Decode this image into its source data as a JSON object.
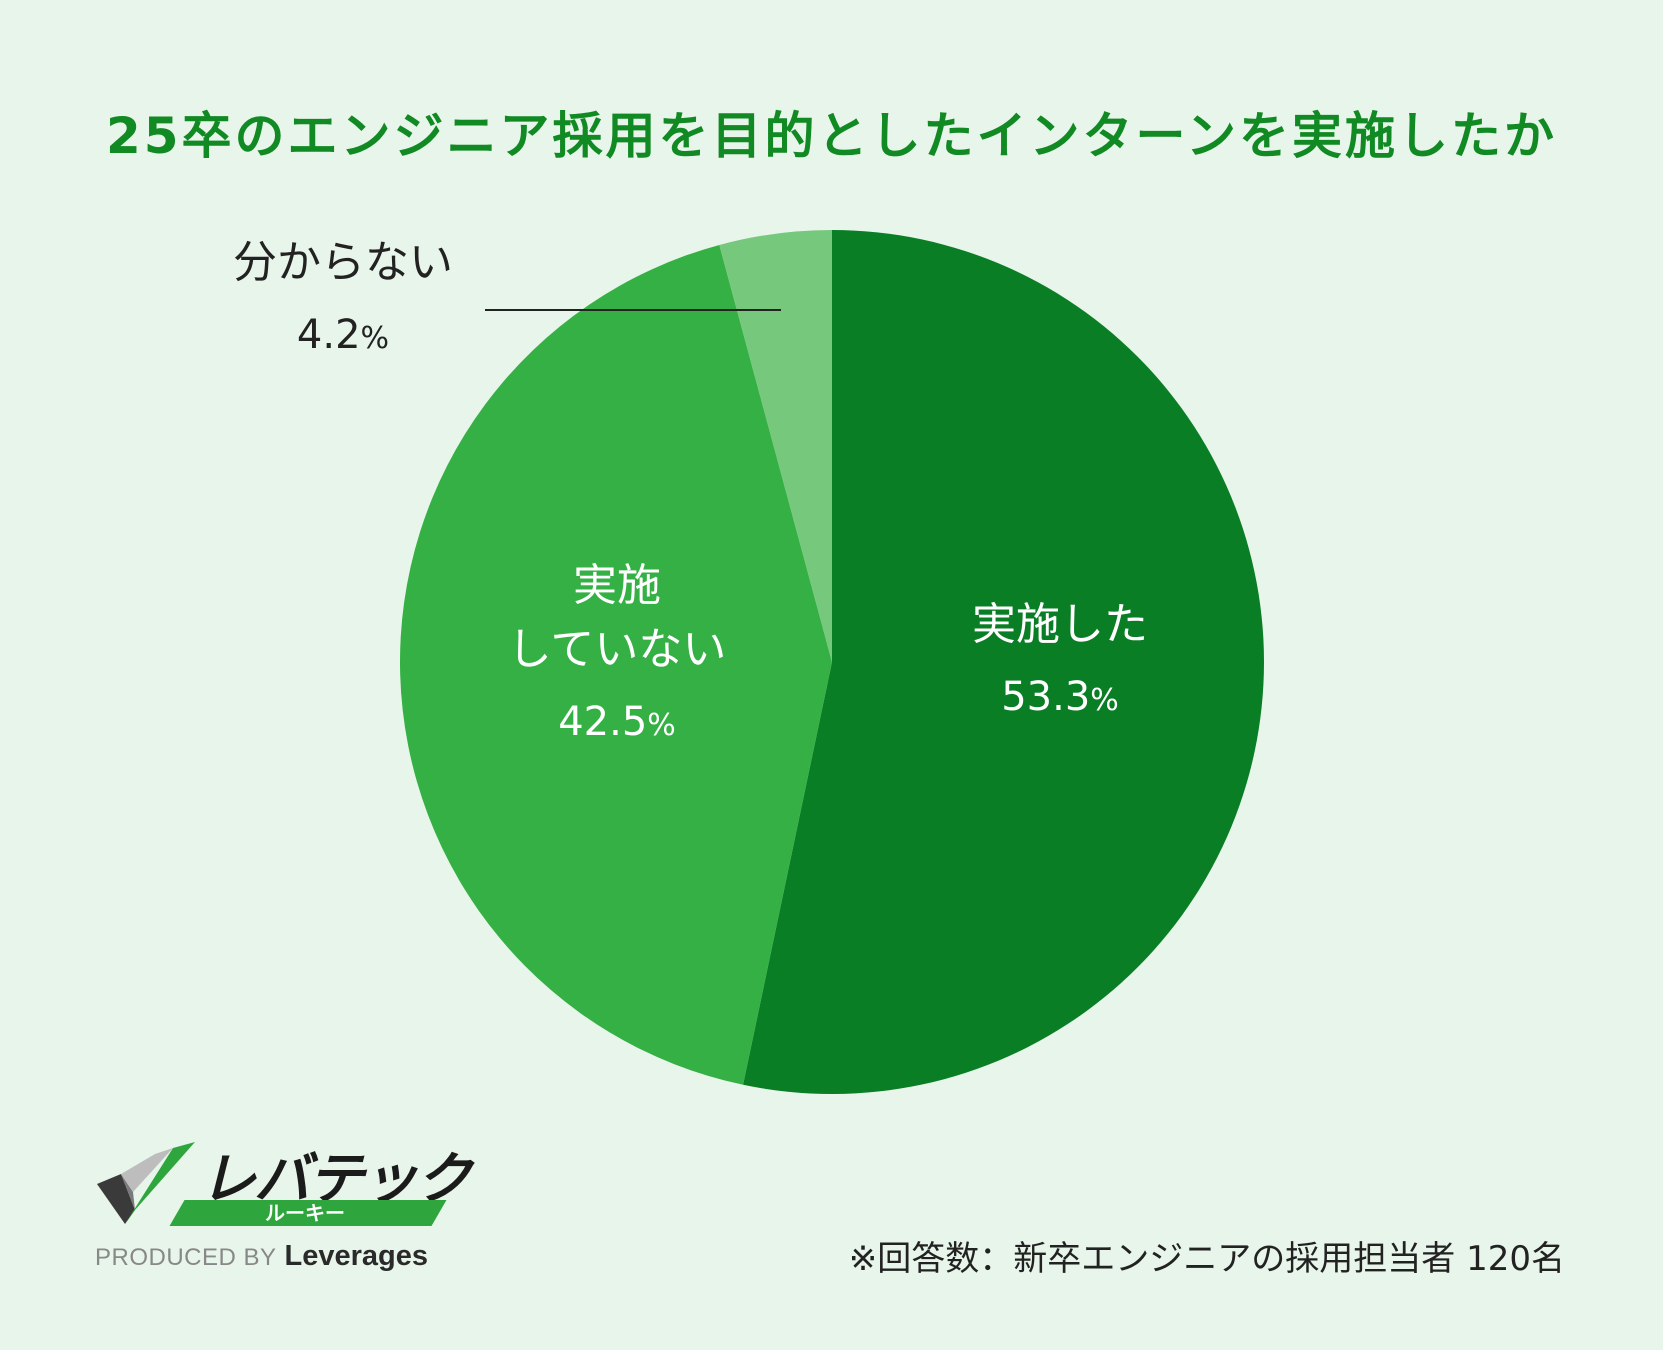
{
  "chart_data": {
    "type": "pie",
    "title": "25卒のエンジニア採用を目的としたインターンを実施したか",
    "slices": [
      {
        "label": "実施した",
        "value": 53.3,
        "display": "53.3",
        "color": "#0a7e25"
      },
      {
        "label": "実施していない",
        "label_lines": [
          "実施",
          "していない"
        ],
        "value": 42.5,
        "display": "42.5",
        "color": "#35b044"
      },
      {
        "label": "分からない",
        "value": 4.2,
        "display": "4.2",
        "color": "#76c97c"
      }
    ],
    "unit": "%",
    "start_angle": "top",
    "direction": "clockwise",
    "legend": "none"
  },
  "footnote": "※回答数：新卒エンジニアの採用担当者 120名",
  "logo": {
    "name": "レバテック",
    "sub": "ルーキー",
    "produced_by": "PRODUCED BY",
    "company": "Leverages",
    "icon": "checkmark-logo-icon"
  },
  "colors": {
    "background": "#e8f5ea",
    "title": "#118a24",
    "text": "#222222"
  }
}
